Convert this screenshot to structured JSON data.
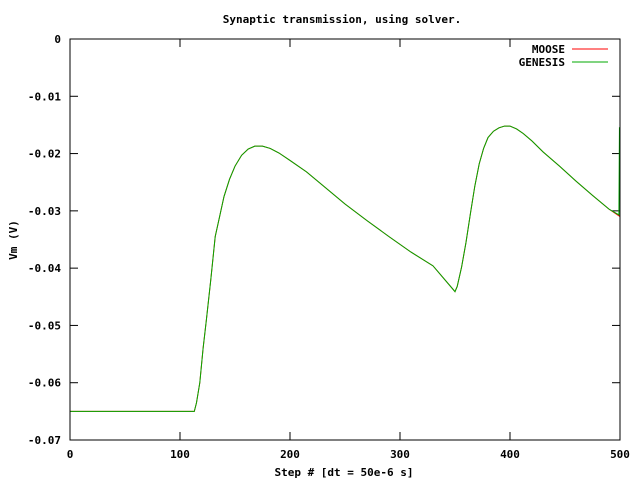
{
  "chart_data": {
    "type": "line",
    "title": "Synaptic transmission, using solver.",
    "xlabel": "Step # [dt = 50e-6 s]",
    "ylabel": "Vm (V)",
    "xlim": [
      0,
      500
    ],
    "ylim": [
      -0.07,
      0
    ],
    "x_ticks": [
      0,
      100,
      200,
      300,
      400,
      500
    ],
    "y_ticks": [
      0,
      -0.01,
      -0.02,
      -0.03,
      -0.04,
      -0.05,
      -0.06,
      -0.07
    ],
    "x_tick_labels": [
      "0",
      "100",
      "200",
      "300",
      "400",
      "500"
    ],
    "y_tick_labels": [
      "0",
      "-0.01",
      "-0.02",
      "-0.03",
      "-0.04",
      "-0.05",
      "-0.06",
      "-0.07"
    ],
    "grid": false,
    "legend_position": "top-right",
    "series": [
      {
        "name": "MOOSE",
        "color": "#ff0000",
        "x": [
          0,
          113,
          115,
          118,
          121,
          124,
          128,
          132,
          136,
          140,
          145,
          150,
          156,
          162,
          168,
          175,
          182,
          190,
          200,
          215,
          230,
          250,
          270,
          290,
          310,
          330,
          350,
          352,
          356,
          360,
          364,
          368,
          372,
          376,
          380,
          385,
          390,
          395,
          400,
          406,
          412,
          420,
          430,
          445,
          460,
          475,
          490,
          500
        ],
        "y": [
          -0.065,
          -0.065,
          -0.0635,
          -0.06,
          -0.054,
          -0.049,
          -0.042,
          -0.0345,
          -0.031,
          -0.0275,
          -0.0245,
          -0.0222,
          -0.0203,
          -0.0192,
          -0.0187,
          -0.0187,
          -0.0191,
          -0.0199,
          -0.0212,
          -0.0232,
          -0.0256,
          -0.0288,
          -0.0317,
          -0.0345,
          -0.0372,
          -0.0396,
          -0.0441,
          -0.0432,
          -0.0398,
          -0.0355,
          -0.0305,
          -0.0257,
          -0.0218,
          -0.0191,
          -0.0172,
          -0.0161,
          -0.0155,
          -0.0152,
          -0.0152,
          -0.0157,
          -0.0165,
          -0.0178,
          -0.0197,
          -0.0222,
          -0.0248,
          -0.0273,
          -0.0297,
          -0.031
        ]
      },
      {
        "name": "GENESIS",
        "color": "#00aa00",
        "x": [
          0,
          113,
          115,
          118,
          121,
          124,
          128,
          132,
          136,
          140,
          145,
          150,
          156,
          162,
          168,
          175,
          182,
          190,
          200,
          215,
          230,
          250,
          270,
          290,
          310,
          330,
          350,
          352,
          356,
          360,
          364,
          368,
          372,
          376,
          380,
          385,
          390,
          395,
          400,
          406,
          412,
          420,
          430,
          445,
          460,
          475,
          490,
          499,
          499.5,
          500
        ],
        "y": [
          -0.065,
          -0.065,
          -0.0635,
          -0.06,
          -0.054,
          -0.049,
          -0.042,
          -0.0345,
          -0.031,
          -0.0275,
          -0.0245,
          -0.0222,
          -0.0203,
          -0.0192,
          -0.0187,
          -0.0187,
          -0.0191,
          -0.0199,
          -0.0212,
          -0.0232,
          -0.0256,
          -0.0288,
          -0.0317,
          -0.0345,
          -0.0372,
          -0.0396,
          -0.0441,
          -0.0432,
          -0.0398,
          -0.0355,
          -0.0305,
          -0.0257,
          -0.0218,
          -0.0191,
          -0.0172,
          -0.0161,
          -0.0155,
          -0.0152,
          -0.0152,
          -0.0157,
          -0.0165,
          -0.0178,
          -0.0197,
          -0.0222,
          -0.0248,
          -0.0273,
          -0.0297,
          -0.0307,
          -0.0155,
          -0.0155
        ]
      }
    ]
  }
}
